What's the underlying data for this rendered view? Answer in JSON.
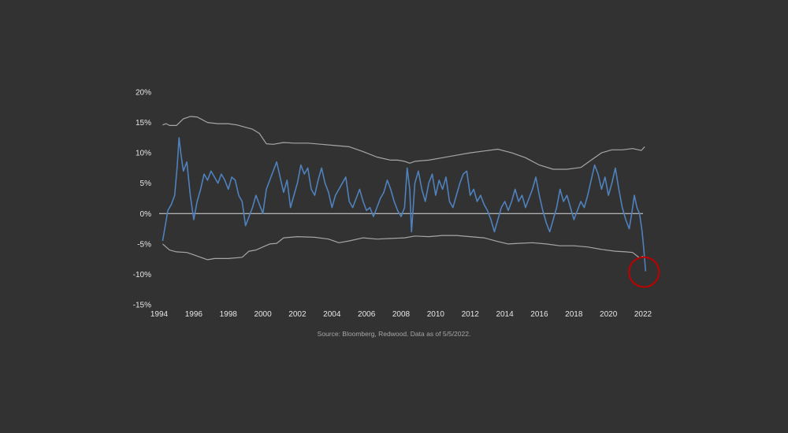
{
  "chart_data": {
    "type": "line",
    "title": "",
    "xlabel": "",
    "ylabel": "",
    "xlim": [
      1994,
      2022
    ],
    "ylim": [
      -15,
      20
    ],
    "y_ticks": [
      -15,
      -10,
      -5,
      0,
      5,
      10,
      15,
      20
    ],
    "y_tick_labels": [
      "-15%",
      "-10%",
      "-5%",
      "0%",
      "5%",
      "10%",
      "15%",
      "20%"
    ],
    "x_ticks": [
      1994,
      1996,
      1998,
      2000,
      2002,
      2004,
      2006,
      2008,
      2010,
      2012,
      2014,
      2016,
      2018,
      2020,
      2022
    ],
    "x_tick_labels": [
      "1994",
      "1996",
      "1998",
      "2000",
      "2002",
      "2004",
      "2006",
      "2008",
      "2010",
      "2012",
      "2014",
      "2016",
      "2018",
      "2020",
      "2022"
    ],
    "grid": false,
    "zero_line": true,
    "series": [
      {
        "role": "main",
        "color": "#4f81bd",
        "points": [
          [
            1994.2,
            -4.5
          ],
          [
            1994.35,
            -2.0
          ],
          [
            1994.5,
            0.5
          ],
          [
            1994.7,
            1.5
          ],
          [
            1994.9,
            3.0
          ],
          [
            1995.05,
            8.0
          ],
          [
            1995.15,
            12.5
          ],
          [
            1995.25,
            10.0
          ],
          [
            1995.4,
            7.0
          ],
          [
            1995.6,
            8.5
          ],
          [
            1995.8,
            3.0
          ],
          [
            1996.0,
            -1.0
          ],
          [
            1996.2,
            2.0
          ],
          [
            1996.4,
            4.0
          ],
          [
            1996.6,
            6.5
          ],
          [
            1996.8,
            5.5
          ],
          [
            1997.0,
            7.0
          ],
          [
            1997.2,
            6.0
          ],
          [
            1997.4,
            5.0
          ],
          [
            1997.6,
            6.5
          ],
          [
            1997.8,
            5.5
          ],
          [
            1998.0,
            4.0
          ],
          [
            1998.2,
            6.0
          ],
          [
            1998.4,
            5.5
          ],
          [
            1998.6,
            3.0
          ],
          [
            1998.8,
            2.0
          ],
          [
            1999.0,
            -2.0
          ],
          [
            1999.2,
            -0.5
          ],
          [
            1999.4,
            1.0
          ],
          [
            1999.6,
            3.0
          ],
          [
            1999.8,
            1.5
          ],
          [
            2000.0,
            0.0
          ],
          [
            2000.2,
            4.0
          ],
          [
            2000.4,
            5.5
          ],
          [
            2000.6,
            7.0
          ],
          [
            2000.8,
            8.5
          ],
          [
            2001.0,
            6.0
          ],
          [
            2001.2,
            3.5
          ],
          [
            2001.4,
            5.5
          ],
          [
            2001.6,
            1.0
          ],
          [
            2001.8,
            3.0
          ],
          [
            2002.0,
            5.0
          ],
          [
            2002.2,
            8.0
          ],
          [
            2002.4,
            6.5
          ],
          [
            2002.6,
            7.5
          ],
          [
            2002.8,
            4.0
          ],
          [
            2003.0,
            3.0
          ],
          [
            2003.2,
            5.5
          ],
          [
            2003.4,
            7.5
          ],
          [
            2003.6,
            5.0
          ],
          [
            2003.8,
            3.5
          ],
          [
            2004.0,
            1.0
          ],
          [
            2004.2,
            3.0
          ],
          [
            2004.4,
            4.0
          ],
          [
            2004.6,
            5.0
          ],
          [
            2004.8,
            6.0
          ],
          [
            2005.0,
            2.0
          ],
          [
            2005.2,
            1.0
          ],
          [
            2005.4,
            2.5
          ],
          [
            2005.6,
            4.0
          ],
          [
            2005.8,
            2.0
          ],
          [
            2006.0,
            0.5
          ],
          [
            2006.2,
            1.0
          ],
          [
            2006.4,
            -0.5
          ],
          [
            2006.6,
            1.0
          ],
          [
            2006.8,
            2.5
          ],
          [
            2007.0,
            3.5
          ],
          [
            2007.2,
            5.5
          ],
          [
            2007.4,
            4.0
          ],
          [
            2007.6,
            2.0
          ],
          [
            2007.8,
            0.5
          ],
          [
            2008.0,
            -0.5
          ],
          [
            2008.2,
            1.0
          ],
          [
            2008.35,
            7.5
          ],
          [
            2008.5,
            4.0
          ],
          [
            2008.6,
            -3.0
          ],
          [
            2008.8,
            5.0
          ],
          [
            2009.0,
            7.0
          ],
          [
            2009.2,
            4.0
          ],
          [
            2009.4,
            2.0
          ],
          [
            2009.6,
            5.0
          ],
          [
            2009.8,
            6.5
          ],
          [
            2010.0,
            3.0
          ],
          [
            2010.2,
            5.5
          ],
          [
            2010.4,
            4.0
          ],
          [
            2010.6,
            6.0
          ],
          [
            2010.8,
            2.0
          ],
          [
            2011.0,
            1.0
          ],
          [
            2011.2,
            3.0
          ],
          [
            2011.4,
            5.0
          ],
          [
            2011.6,
            6.5
          ],
          [
            2011.8,
            7.0
          ],
          [
            2012.0,
            3.0
          ],
          [
            2012.2,
            4.0
          ],
          [
            2012.4,
            2.0
          ],
          [
            2012.6,
            3.0
          ],
          [
            2012.8,
            1.5
          ],
          [
            2013.0,
            0.5
          ],
          [
            2013.2,
            -1.0
          ],
          [
            2013.4,
            -3.0
          ],
          [
            2013.6,
            -1.0
          ],
          [
            2013.8,
            1.0
          ],
          [
            2014.0,
            2.0
          ],
          [
            2014.2,
            0.5
          ],
          [
            2014.4,
            2.0
          ],
          [
            2014.6,
            4.0
          ],
          [
            2014.8,
            2.0
          ],
          [
            2015.0,
            3.0
          ],
          [
            2015.2,
            1.0
          ],
          [
            2015.4,
            2.5
          ],
          [
            2015.6,
            4.0
          ],
          [
            2015.8,
            6.0
          ],
          [
            2016.0,
            3.0
          ],
          [
            2016.2,
            0.5
          ],
          [
            2016.4,
            -1.5
          ],
          [
            2016.6,
            -3.0
          ],
          [
            2016.8,
            -1.0
          ],
          [
            2017.0,
            1.0
          ],
          [
            2017.2,
            4.0
          ],
          [
            2017.4,
            2.0
          ],
          [
            2017.6,
            3.0
          ],
          [
            2017.8,
            1.0
          ],
          [
            2018.0,
            -1.0
          ],
          [
            2018.2,
            0.5
          ],
          [
            2018.4,
            2.0
          ],
          [
            2018.6,
            1.0
          ],
          [
            2018.8,
            3.0
          ],
          [
            2019.0,
            5.5
          ],
          [
            2019.2,
            8.0
          ],
          [
            2019.4,
            6.5
          ],
          [
            2019.6,
            4.0
          ],
          [
            2019.8,
            6.0
          ],
          [
            2020.0,
            3.0
          ],
          [
            2020.2,
            5.0
          ],
          [
            2020.4,
            7.5
          ],
          [
            2020.6,
            4.0
          ],
          [
            2020.8,
            1.0
          ],
          [
            2021.0,
            -1.0
          ],
          [
            2021.2,
            -2.5
          ],
          [
            2021.35,
            0.0
          ],
          [
            2021.5,
            3.0
          ],
          [
            2021.65,
            1.0
          ],
          [
            2021.8,
            0.0
          ],
          [
            2021.95,
            -3.0
          ],
          [
            2022.05,
            -6.0
          ],
          [
            2022.15,
            -9.5
          ]
        ]
      },
      {
        "role": "upper-band",
        "color": "#a6a6a6",
        "points": [
          [
            1994.2,
            14.6
          ],
          [
            1994.4,
            14.8
          ],
          [
            1994.6,
            14.5
          ],
          [
            1995.0,
            14.5
          ],
          [
            1995.4,
            15.6
          ],
          [
            1995.8,
            16.0
          ],
          [
            1996.2,
            15.9
          ],
          [
            1996.8,
            15.0
          ],
          [
            1997.4,
            14.8
          ],
          [
            1998.0,
            14.8
          ],
          [
            1998.5,
            14.6
          ],
          [
            1999.0,
            14.2
          ],
          [
            1999.4,
            13.9
          ],
          [
            1999.8,
            13.2
          ],
          [
            2000.2,
            11.5
          ],
          [
            2000.6,
            11.4
          ],
          [
            2001.2,
            11.7
          ],
          [
            2001.8,
            11.6
          ],
          [
            2002.6,
            11.6
          ],
          [
            2003.4,
            11.4
          ],
          [
            2004.2,
            11.2
          ],
          [
            2005.0,
            11.0
          ],
          [
            2005.8,
            10.2
          ],
          [
            2006.6,
            9.3
          ],
          [
            2007.4,
            8.8
          ],
          [
            2007.8,
            8.8
          ],
          [
            2008.2,
            8.6
          ],
          [
            2008.5,
            8.3
          ],
          [
            2008.8,
            8.6
          ],
          [
            2009.6,
            8.8
          ],
          [
            2010.4,
            9.2
          ],
          [
            2011.2,
            9.6
          ],
          [
            2012.0,
            10.0
          ],
          [
            2012.8,
            10.3
          ],
          [
            2013.6,
            10.6
          ],
          [
            2014.4,
            10.0
          ],
          [
            2015.2,
            9.2
          ],
          [
            2016.0,
            8.0
          ],
          [
            2016.8,
            7.3
          ],
          [
            2017.6,
            7.3
          ],
          [
            2018.4,
            7.6
          ],
          [
            2019.0,
            8.8
          ],
          [
            2019.6,
            10.0
          ],
          [
            2020.2,
            10.5
          ],
          [
            2020.8,
            10.5
          ],
          [
            2021.4,
            10.7
          ],
          [
            2021.9,
            10.4
          ],
          [
            2022.1,
            11.0
          ]
        ]
      },
      {
        "role": "lower-band",
        "color": "#a6a6a6",
        "points": [
          [
            1994.2,
            -5.0
          ],
          [
            1994.6,
            -6.0
          ],
          [
            1995.0,
            -6.3
          ],
          [
            1995.6,
            -6.4
          ],
          [
            1996.0,
            -6.8
          ],
          [
            1996.4,
            -7.2
          ],
          [
            1996.8,
            -7.6
          ],
          [
            1997.2,
            -7.4
          ],
          [
            1998.0,
            -7.4
          ],
          [
            1998.8,
            -7.2
          ],
          [
            1999.2,
            -6.2
          ],
          [
            1999.6,
            -6.0
          ],
          [
            2000.0,
            -5.5
          ],
          [
            2000.4,
            -5.0
          ],
          [
            2000.8,
            -4.9
          ],
          [
            2001.2,
            -4.0
          ],
          [
            2002.0,
            -3.8
          ],
          [
            2003.0,
            -3.9
          ],
          [
            2003.8,
            -4.2
          ],
          [
            2004.4,
            -4.8
          ],
          [
            2005.0,
            -4.5
          ],
          [
            2005.8,
            -4.0
          ],
          [
            2006.6,
            -4.2
          ],
          [
            2007.4,
            -4.1
          ],
          [
            2008.2,
            -4.0
          ],
          [
            2008.8,
            -3.7
          ],
          [
            2009.6,
            -3.8
          ],
          [
            2010.4,
            -3.6
          ],
          [
            2011.2,
            -3.6
          ],
          [
            2012.0,
            -3.8
          ],
          [
            2012.8,
            -4.0
          ],
          [
            2013.6,
            -4.6
          ],
          [
            2014.2,
            -5.0
          ],
          [
            2014.8,
            -4.9
          ],
          [
            2015.6,
            -4.8
          ],
          [
            2016.4,
            -5.0
          ],
          [
            2017.2,
            -5.3
          ],
          [
            2018.0,
            -5.3
          ],
          [
            2018.8,
            -5.5
          ],
          [
            2019.6,
            -5.9
          ],
          [
            2020.4,
            -6.2
          ],
          [
            2021.0,
            -6.3
          ],
          [
            2021.4,
            -6.4
          ],
          [
            2021.8,
            -7.3
          ],
          [
            2022.0,
            -7.0
          ]
        ]
      }
    ],
    "annotations": [
      {
        "type": "circle",
        "x": 2022.15,
        "y": -9.5,
        "color": "#c00000"
      }
    ],
    "source_note": "Source: Bloomberg, Redwood. Data as of 5/5/2022."
  }
}
